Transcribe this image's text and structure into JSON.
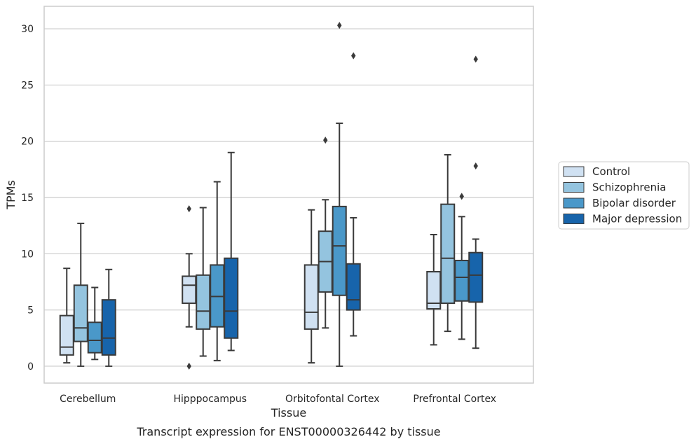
{
  "chart_data": {
    "type": "box",
    "caption": "Transcript expression for ENST00000326442 by tissue",
    "xlabel": "Tissue",
    "ylabel": "TPMs",
    "ylim": [
      -1.5,
      32
    ],
    "yticks": [
      0,
      5,
      10,
      15,
      20,
      25,
      30
    ],
    "grid": true,
    "legend_position": "right",
    "categories": [
      "Cerebellum",
      "Hipppocampus",
      "Orbitofontal Cortex",
      "Prefrontal Cortex"
    ],
    "series": [
      {
        "name": "Control",
        "color": "#d0e1f2",
        "boxes": [
          {
            "whisker_low": 0.3,
            "q1": 1.0,
            "median": 1.7,
            "q3": 4.5,
            "whisker_high": 8.7,
            "outliers": []
          },
          {
            "whisker_low": 3.5,
            "q1": 5.6,
            "median": 7.2,
            "q3": 8.0,
            "whisker_high": 10.0,
            "outliers": [
              0.0,
              14.0
            ]
          },
          {
            "whisker_low": 0.3,
            "q1": 3.3,
            "median": 4.8,
            "q3": 9.0,
            "whisker_high": 13.9,
            "outliers": []
          },
          {
            "whisker_low": 1.9,
            "q1": 5.1,
            "median": 5.6,
            "q3": 8.4,
            "whisker_high": 11.7,
            "outliers": []
          }
        ]
      },
      {
        "name": "Schizophrenia",
        "color": "#94c4df",
        "boxes": [
          {
            "whisker_low": 0.0,
            "q1": 2.2,
            "median": 3.4,
            "q3": 7.2,
            "whisker_high": 12.7,
            "outliers": []
          },
          {
            "whisker_low": 0.9,
            "q1": 3.3,
            "median": 4.9,
            "q3": 8.1,
            "whisker_high": 14.1,
            "outliers": []
          },
          {
            "whisker_low": 3.4,
            "q1": 6.6,
            "median": 9.3,
            "q3": 12.0,
            "whisker_high": 14.8,
            "outliers": [
              20.1
            ]
          },
          {
            "whisker_low": 3.1,
            "q1": 5.6,
            "median": 9.6,
            "q3": 14.4,
            "whisker_high": 18.8,
            "outliers": []
          }
        ]
      },
      {
        "name": "Bipolar disorder",
        "color": "#4a98c9",
        "boxes": [
          {
            "whisker_low": 0.6,
            "q1": 1.2,
            "median": 2.3,
            "q3": 3.9,
            "whisker_high": 7.0,
            "outliers": []
          },
          {
            "whisker_low": 0.5,
            "q1": 3.5,
            "median": 6.2,
            "q3": 9.0,
            "whisker_high": 16.4,
            "outliers": []
          },
          {
            "whisker_low": 0.0,
            "q1": 6.3,
            "median": 10.7,
            "q3": 14.2,
            "whisker_high": 21.6,
            "outliers": [
              30.3
            ]
          },
          {
            "whisker_low": 2.4,
            "q1": 5.8,
            "median": 7.9,
            "q3": 9.4,
            "whisker_high": 13.3,
            "outliers": [
              15.1
            ]
          }
        ]
      },
      {
        "name": "Major depression",
        "color": "#1764ab",
        "boxes": [
          {
            "whisker_low": 0.0,
            "q1": 1.0,
            "median": 2.5,
            "q3": 5.9,
            "whisker_high": 8.6,
            "outliers": []
          },
          {
            "whisker_low": 1.4,
            "q1": 2.5,
            "median": 4.9,
            "q3": 9.6,
            "whisker_high": 19.0,
            "outliers": []
          },
          {
            "whisker_low": 2.7,
            "q1": 5.0,
            "median": 5.9,
            "q3": 9.1,
            "whisker_high": 13.2,
            "outliers": [
              27.6
            ]
          },
          {
            "whisker_low": 1.6,
            "q1": 5.7,
            "median": 8.1,
            "q3": 10.1,
            "whisker_high": 11.3,
            "outliers": [
              17.8,
              27.3
            ]
          }
        ]
      }
    ]
  }
}
